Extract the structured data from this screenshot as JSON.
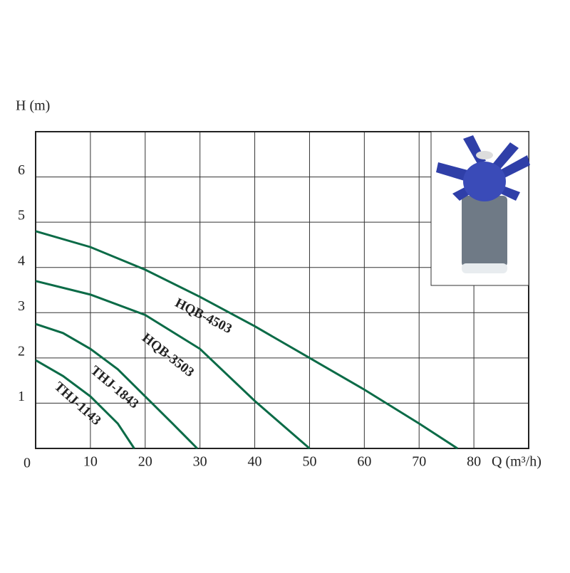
{
  "chart_data": {
    "type": "line",
    "x_label": "Q (m³/h)",
    "y_label": "H (m)",
    "origin_label": "0",
    "xlim": [
      0,
      90
    ],
    "ylim": [
      0,
      7
    ],
    "xticks": [
      10,
      20,
      30,
      40,
      50,
      60,
      70,
      80
    ],
    "yticks": [
      1,
      2,
      3,
      4,
      5,
      6
    ],
    "grid": true,
    "series": [
      {
        "name": "HQB-4503",
        "color": "#0b6b47",
        "x": [
          0,
          10,
          20,
          30,
          40,
          50,
          60,
          70,
          77
        ],
        "values": [
          4.8,
          4.45,
          3.95,
          3.35,
          2.7,
          2.0,
          1.3,
          0.55,
          0
        ]
      },
      {
        "name": "HQB-3503",
        "color": "#0b6b47",
        "x": [
          0,
          10,
          20,
          30,
          40,
          50
        ],
        "values": [
          3.7,
          3.4,
          2.95,
          2.2,
          1.05,
          0
        ]
      },
      {
        "name": "THJ-1843",
        "color": "#0b6b47",
        "x": [
          0,
          5,
          10,
          15,
          20,
          25,
          29.5
        ],
        "values": [
          2.75,
          2.55,
          2.2,
          1.75,
          1.15,
          0.55,
          0
        ]
      },
      {
        "name": "THJ-1143",
        "color": "#0b6b47",
        "x": [
          0,
          5,
          10,
          15,
          18
        ],
        "values": [
          1.95,
          1.6,
          1.15,
          0.55,
          0
        ]
      }
    ]
  }
}
